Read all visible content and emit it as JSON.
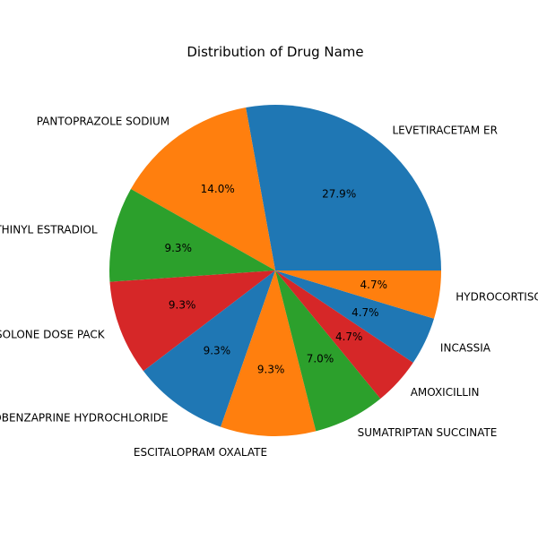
{
  "chart_data": {
    "type": "pie",
    "title": "Distribution of Drug Name",
    "slices": [
      {
        "label": "LEVETIRACETAM ER",
        "value": 27.9,
        "pct_label": "27.9%",
        "color": "#1f77b4"
      },
      {
        "label": "PANTOPRAZOLE SODIUM",
        "value": 14.0,
        "pct_label": "14.0%",
        "color": "#ff7f0e"
      },
      {
        "label": "ETHINYL ESTRADIOL",
        "value": 9.3,
        "pct_label": "9.3%",
        "color": "#2ca02c"
      },
      {
        "label": "METHYLPREDNISOLONE DOSE PACK",
        "value": 9.3,
        "pct_label": "9.3%",
        "color": "#d62728"
      },
      {
        "label": "CYCLOBENZAPRINE HYDROCHLORIDE",
        "value": 9.3,
        "pct_label": "9.3%",
        "color": "#1f77b4"
      },
      {
        "label": "ESCITALOPRAM OXALATE",
        "value": 9.3,
        "pct_label": "9.3%",
        "color": "#ff7f0e"
      },
      {
        "label": "SUMATRIPTAN SUCCINATE",
        "value": 7.0,
        "pct_label": "7.0%",
        "color": "#2ca02c"
      },
      {
        "label": "AMOXICILLIN",
        "value": 4.7,
        "pct_label": "4.7%",
        "color": "#d62728"
      },
      {
        "label": "INCASSIA",
        "value": 4.7,
        "pct_label": "4.7%",
        "color": "#1f77b4"
      },
      {
        "label": "HYDROCORTISONE",
        "value": 4.7,
        "pct_label": "4.7%",
        "color": "#ff7f0e"
      }
    ]
  }
}
